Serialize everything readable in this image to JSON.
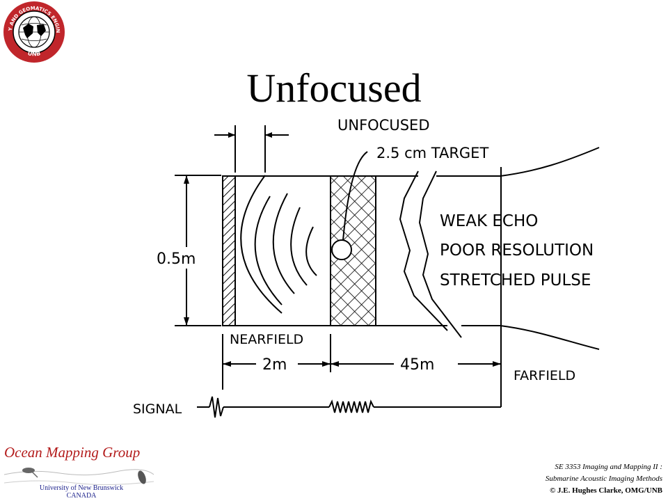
{
  "logo": {
    "text_top": "GEODESY AND GEOMATICS ENGINEERING",
    "text_bottom": "UNB"
  },
  "title": "Unfocused",
  "diagram": {
    "heading": "UNFOCUSED",
    "target_label": "2.5 cm TARGET",
    "height_label": "0.5m",
    "effects": [
      "WEAK ECHO",
      "POOR RESOLUTION",
      "STRETCHED PULSE"
    ],
    "nearfield_label": "NEARFIELD",
    "farfield_label": "FARFIELD",
    "distance_near": "2m",
    "distance_far": "45m",
    "signal_label": "SIGNAL"
  },
  "footer": {
    "brand": "Ocean Mapping Group",
    "university_line1": "University of New Brunswick",
    "university_line2": "CANADA",
    "course_line1": "SE 3353 Imaging and Mapping II :",
    "course_line2": "Submarine Acoustic Imaging Methods",
    "copyright": "© J.E. Hughes Clarke, OMG/UNB"
  },
  "colors": {
    "brand_red": "#b31b1b",
    "logo_red": "#c0262b",
    "university_blue": "#1a1f8a"
  }
}
